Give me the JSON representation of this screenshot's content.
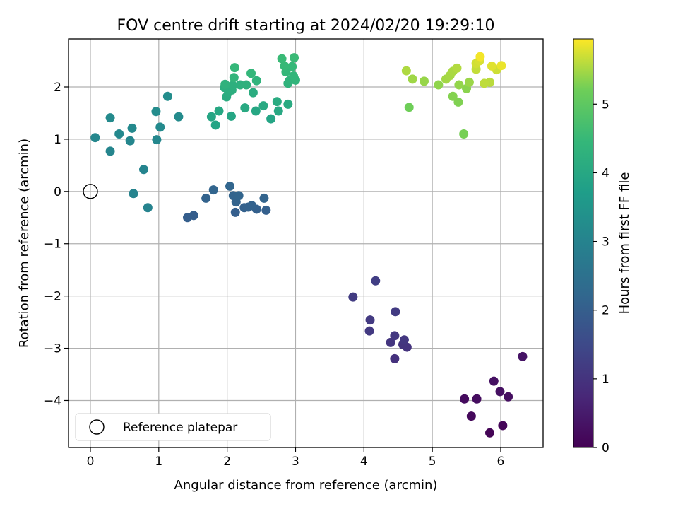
{
  "chart_data": {
    "type": "scatter",
    "title": "FOV centre drift starting at 2024/02/20 19:29:10",
    "xlabel": "Angular distance from reference (arcmin)",
    "ylabel": "Rotation from reference (arcmin)",
    "xlim": [
      -0.32,
      6.62
    ],
    "ylim": [
      -4.9,
      2.92
    ],
    "xticks": [
      0,
      1,
      2,
      3,
      4,
      5,
      6
    ],
    "yticks": [
      -4,
      -3,
      -2,
      -1,
      0,
      1,
      2
    ],
    "grid": true,
    "colormap": "viridis",
    "colorbar": {
      "label": "Hours from first FF file",
      "range": [
        0,
        5.95
      ],
      "ticks": [
        0,
        1,
        2,
        3,
        4,
        5
      ]
    },
    "legend": {
      "position": "lower-left",
      "entries": [
        "Reference platepar"
      ]
    },
    "reference_point": {
      "x": 0,
      "y": 0,
      "label": "Reference platepar"
    },
    "points": [
      {
        "x": 5.84,
        "y": -4.62,
        "hours": 0.05
      },
      {
        "x": 6.03,
        "y": -4.48,
        "hours": 0.1
      },
      {
        "x": 5.57,
        "y": -4.3,
        "hours": 0.15
      },
      {
        "x": 5.47,
        "y": -3.97,
        "hours": 0.2
      },
      {
        "x": 5.65,
        "y": -3.97,
        "hours": 0.22
      },
      {
        "x": 6.11,
        "y": -3.93,
        "hours": 0.25
      },
      {
        "x": 5.99,
        "y": -3.83,
        "hours": 0.28
      },
      {
        "x": 5.9,
        "y": -3.63,
        "hours": 0.3
      },
      {
        "x": 6.32,
        "y": -3.16,
        "hours": 0.35
      },
      {
        "x": 4.45,
        "y": -3.2,
        "hours": 0.95
      },
      {
        "x": 4.63,
        "y": -2.98,
        "hours": 1.0
      },
      {
        "x": 4.57,
        "y": -2.93,
        "hours": 1.02
      },
      {
        "x": 4.39,
        "y": -2.89,
        "hours": 1.05
      },
      {
        "x": 4.59,
        "y": -2.84,
        "hours": 1.08
      },
      {
        "x": 4.45,
        "y": -2.76,
        "hours": 1.1
      },
      {
        "x": 4.08,
        "y": -2.67,
        "hours": 1.12
      },
      {
        "x": 4.09,
        "y": -2.46,
        "hours": 1.15
      },
      {
        "x": 4.46,
        "y": -2.3,
        "hours": 1.18
      },
      {
        "x": 3.84,
        "y": -2.02,
        "hours": 1.2
      },
      {
        "x": 4.17,
        "y": -1.71,
        "hours": 1.25
      },
      {
        "x": 1.42,
        "y": -0.5,
        "hours": 2.0
      },
      {
        "x": 1.51,
        "y": -0.46,
        "hours": 2.0
      },
      {
        "x": 2.12,
        "y": -0.4,
        "hours": 2.02
      },
      {
        "x": 2.57,
        "y": -0.36,
        "hours": 2.03
      },
      {
        "x": 2.43,
        "y": -0.34,
        "hours": 2.05
      },
      {
        "x": 2.25,
        "y": -0.31,
        "hours": 2.06
      },
      {
        "x": 2.31,
        "y": -0.3,
        "hours": 2.08
      },
      {
        "x": 2.36,
        "y": -0.27,
        "hours": 2.09
      },
      {
        "x": 2.13,
        "y": -0.2,
        "hours": 2.1
      },
      {
        "x": 1.69,
        "y": -0.13,
        "hours": 2.12
      },
      {
        "x": 2.54,
        "y": -0.13,
        "hours": 2.13
      },
      {
        "x": 2.09,
        "y": -0.08,
        "hours": 2.14
      },
      {
        "x": 2.17,
        "y": -0.08,
        "hours": 2.15
      },
      {
        "x": 1.8,
        "y": 0.03,
        "hours": 2.16
      },
      {
        "x": 2.04,
        "y": 0.1,
        "hours": 2.18
      },
      {
        "x": 0.84,
        "y": -0.31,
        "hours": 3.0
      },
      {
        "x": 0.63,
        "y": -0.04,
        "hours": 3.02
      },
      {
        "x": 0.78,
        "y": 0.42,
        "hours": 3.04
      },
      {
        "x": 0.29,
        "y": 0.77,
        "hours": 3.06
      },
      {
        "x": 0.58,
        "y": 0.97,
        "hours": 3.08
      },
      {
        "x": 0.97,
        "y": 0.99,
        "hours": 3.1
      },
      {
        "x": 0.07,
        "y": 1.03,
        "hours": 3.12
      },
      {
        "x": 0.42,
        "y": 1.1,
        "hours": 3.14
      },
      {
        "x": 0.61,
        "y": 1.21,
        "hours": 3.16
      },
      {
        "x": 1.02,
        "y": 1.23,
        "hours": 3.18
      },
      {
        "x": 0.29,
        "y": 1.41,
        "hours": 3.2
      },
      {
        "x": 1.29,
        "y": 1.43,
        "hours": 3.22
      },
      {
        "x": 0.96,
        "y": 1.53,
        "hours": 3.24
      },
      {
        "x": 1.13,
        "y": 1.82,
        "hours": 3.26
      },
      {
        "x": 1.83,
        "y": 1.27,
        "hours": 3.9
      },
      {
        "x": 2.64,
        "y": 1.39,
        "hours": 3.92
      },
      {
        "x": 1.77,
        "y": 1.43,
        "hours": 3.94
      },
      {
        "x": 2.06,
        "y": 1.44,
        "hours": 3.96
      },
      {
        "x": 1.88,
        "y": 1.54,
        "hours": 3.98
      },
      {
        "x": 2.42,
        "y": 1.54,
        "hours": 4.0
      },
      {
        "x": 2.75,
        "y": 1.54,
        "hours": 4.02
      },
      {
        "x": 2.26,
        "y": 1.6,
        "hours": 4.04
      },
      {
        "x": 2.53,
        "y": 1.64,
        "hours": 4.06
      },
      {
        "x": 2.89,
        "y": 1.67,
        "hours": 4.08
      },
      {
        "x": 2.73,
        "y": 1.72,
        "hours": 4.1
      },
      {
        "x": 1.99,
        "y": 1.81,
        "hours": 4.12
      },
      {
        "x": 2.38,
        "y": 1.89,
        "hours": 4.14
      },
      {
        "x": 2.02,
        "y": 1.9,
        "hours": 4.16
      },
      {
        "x": 2.07,
        "y": 1.94,
        "hours": 4.18
      },
      {
        "x": 1.96,
        "y": 1.99,
        "hours": 4.2
      },
      {
        "x": 2.08,
        "y": 2.03,
        "hours": 4.22
      },
      {
        "x": 2.19,
        "y": 2.04,
        "hours": 4.24
      },
      {
        "x": 2.28,
        "y": 2.04,
        "hours": 4.26
      },
      {
        "x": 1.97,
        "y": 2.05,
        "hours": 4.28
      },
      {
        "x": 2.89,
        "y": 2.07,
        "hours": 4.3
      },
      {
        "x": 2.91,
        "y": 2.12,
        "hours": 4.32
      },
      {
        "x": 2.43,
        "y": 2.12,
        "hours": 4.34
      },
      {
        "x": 3.0,
        "y": 2.13,
        "hours": 4.36
      },
      {
        "x": 2.1,
        "y": 2.18,
        "hours": 4.38
      },
      {
        "x": 2.97,
        "y": 2.21,
        "hours": 4.4
      },
      {
        "x": 2.35,
        "y": 2.26,
        "hours": 4.42
      },
      {
        "x": 2.86,
        "y": 2.29,
        "hours": 4.44
      },
      {
        "x": 2.11,
        "y": 2.37,
        "hours": 4.46
      },
      {
        "x": 2.95,
        "y": 2.39,
        "hours": 4.48
      },
      {
        "x": 2.84,
        "y": 2.4,
        "hours": 4.5
      },
      {
        "x": 2.8,
        "y": 2.54,
        "hours": 4.52
      },
      {
        "x": 2.98,
        "y": 2.56,
        "hours": 4.54
      },
      {
        "x": 4.66,
        "y": 1.61,
        "hours": 5.2
      },
      {
        "x": 5.46,
        "y": 1.1,
        "hours": 5.25
      },
      {
        "x": 5.38,
        "y": 1.71,
        "hours": 5.3
      },
      {
        "x": 5.3,
        "y": 1.82,
        "hours": 5.32
      },
      {
        "x": 5.5,
        "y": 1.97,
        "hours": 5.35
      },
      {
        "x": 5.09,
        "y": 2.04,
        "hours": 5.38
      },
      {
        "x": 5.39,
        "y": 2.04,
        "hours": 5.4
      },
      {
        "x": 4.88,
        "y": 2.11,
        "hours": 5.42
      },
      {
        "x": 5.54,
        "y": 2.09,
        "hours": 5.44
      },
      {
        "x": 4.71,
        "y": 2.15,
        "hours": 5.46
      },
      {
        "x": 5.2,
        "y": 2.15,
        "hours": 5.48
      },
      {
        "x": 5.26,
        "y": 2.22,
        "hours": 5.5
      },
      {
        "x": 5.3,
        "y": 2.3,
        "hours": 5.52
      },
      {
        "x": 4.62,
        "y": 2.31,
        "hours": 5.54
      },
      {
        "x": 5.36,
        "y": 2.36,
        "hours": 5.56
      },
      {
        "x": 5.84,
        "y": 2.09,
        "hours": 5.6
      },
      {
        "x": 5.76,
        "y": 2.07,
        "hours": 5.62
      },
      {
        "x": 5.64,
        "y": 2.34,
        "hours": 5.65
      },
      {
        "x": 5.94,
        "y": 2.33,
        "hours": 5.7
      },
      {
        "x": 5.64,
        "y": 2.45,
        "hours": 5.72
      },
      {
        "x": 5.69,
        "y": 2.5,
        "hours": 5.75
      },
      {
        "x": 5.87,
        "y": 2.4,
        "hours": 5.8
      },
      {
        "x": 6.01,
        "y": 2.41,
        "hours": 5.85
      },
      {
        "x": 5.7,
        "y": 2.58,
        "hours": 5.9
      }
    ]
  }
}
